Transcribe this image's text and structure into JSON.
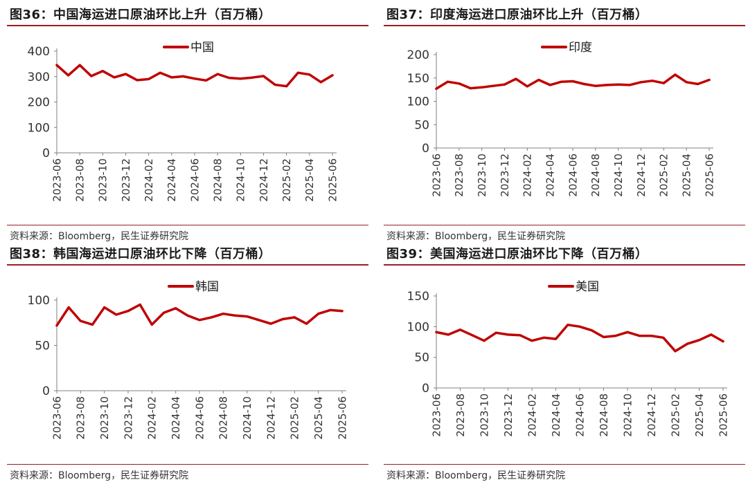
{
  "colors": {
    "line": "#c00000",
    "rule": "#9b1c24",
    "text": "#1a1a1a"
  },
  "chart_data": [
    {
      "type": "line",
      "title": "图36：中国海运进口原油环比上升（百万桶）",
      "source": "资料来源：Bloomberg，民生证券研究院",
      "legend": "top-center",
      "ylim": [
        0,
        400
      ],
      "yticks": [
        "0",
        "100",
        "200",
        "300",
        "400"
      ],
      "tick_labels": [
        "2023-06",
        "2023-08",
        "2023-10",
        "2023-12",
        "2024-02",
        "2024-04",
        "2024-06",
        "2024-08",
        "2024-10",
        "2024-12",
        "2025-02",
        "2025-04",
        "2025-06"
      ],
      "series": [
        {
          "name": "中国",
          "values": [
            345,
            305,
            345,
            302,
            322,
            297,
            310,
            286,
            290,
            315,
            297,
            301,
            292,
            285,
            310,
            295,
            292,
            296,
            302,
            268,
            262,
            315,
            308,
            278,
            305
          ]
        }
      ]
    },
    {
      "type": "line",
      "title": "图37：印度海运进口原油环比上升（百万桶）",
      "source": "资料来源：Bloomberg，民生证券研究院",
      "legend": "top-center",
      "ylim": [
        0,
        200
      ],
      "yticks": [
        "0",
        "50",
        "100",
        "150",
        "200"
      ],
      "tick_labels": [
        "2023-06",
        "2023-08",
        "2023-10",
        "2023-12",
        "2024-02",
        "2024-04",
        "2024-06",
        "2024-08",
        "2024-10",
        "2024-12",
        "2025-02",
        "2025-04",
        "2025-06"
      ],
      "series": [
        {
          "name": "印度",
          "values": [
            127,
            142,
            138,
            128,
            130,
            133,
            136,
            148,
            132,
            146,
            135,
            142,
            143,
            137,
            133,
            135,
            136,
            135,
            141,
            144,
            139,
            157,
            141,
            137,
            146
          ]
        }
      ]
    },
    {
      "type": "line",
      "title": "图38：韩国海运进口原油环比下降（百万桶）",
      "source": "资料来源：Bloomberg，民生证券研究院",
      "legend": "top-center",
      "ylim": [
        0,
        100
      ],
      "yticks": [
        "0",
        "50",
        "100"
      ],
      "tick_labels": [
        "2023-06",
        "2023-08",
        "2023-10",
        "2023-12",
        "2024-02",
        "2024-04",
        "2024-06",
        "2024-08",
        "2024-10",
        "2024-12",
        "2025-02",
        "2025-04",
        "2025-06"
      ],
      "series": [
        {
          "name": "韩国",
          "values": [
            72,
            92,
            77,
            73,
            92,
            84,
            88,
            95,
            73,
            86,
            91,
            83,
            78,
            81,
            85,
            83,
            82,
            78,
            74,
            79,
            81,
            74,
            85,
            89,
            88
          ]
        }
      ]
    },
    {
      "type": "line",
      "title": "图39：美国海运进口原油环比下降（百万桶）",
      "source": "资料来源：Bloomberg，民生证券研究院",
      "legend": "top-center",
      "ylim": [
        0,
        150
      ],
      "yticks": [
        "0",
        "50",
        "100",
        "150"
      ],
      "tick_labels": [
        "2023-06",
        "2023-08",
        "2023-10",
        "2023-12",
        "2024-02",
        "2024-04",
        "2024-06",
        "2024-08",
        "2024-10",
        "2024-12",
        "2025-02",
        "2025-04",
        "2025-06"
      ],
      "series": [
        {
          "name": "美国",
          "values": [
            91,
            87,
            95,
            86,
            77,
            90,
            87,
            86,
            77,
            82,
            80,
            103,
            100,
            94,
            83,
            85,
            91,
            85,
            85,
            82,
            60,
            72,
            78,
            87,
            76
          ]
        }
      ]
    }
  ]
}
